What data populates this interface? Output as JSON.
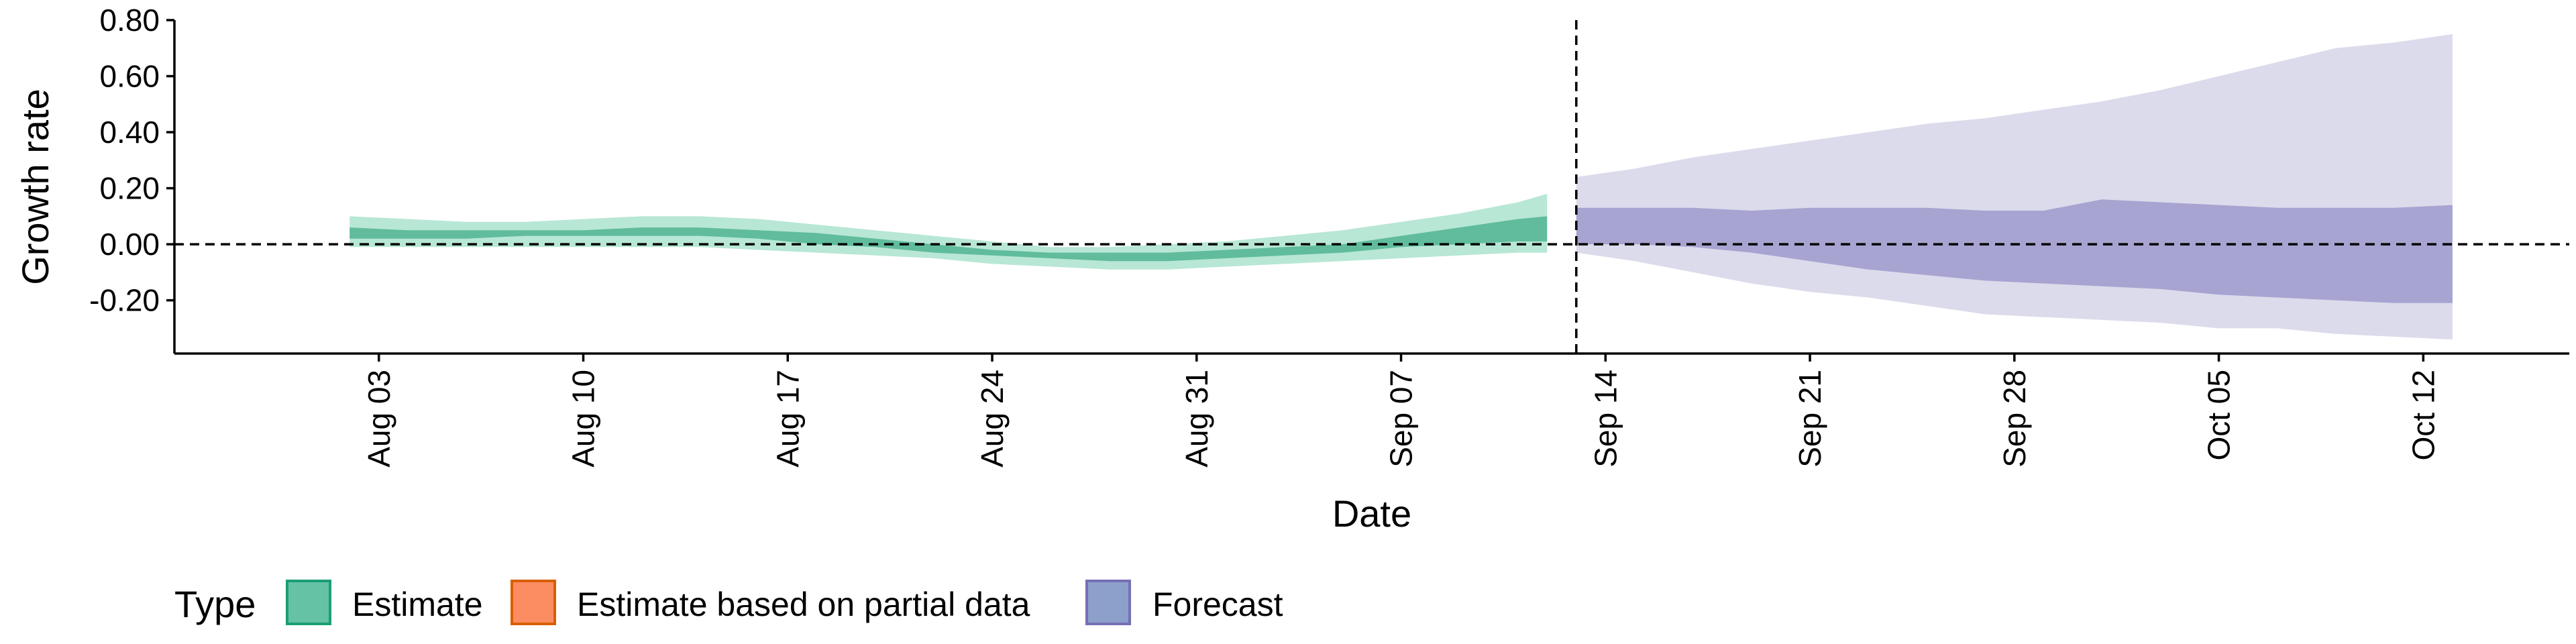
{
  "chart_data": {
    "type": "area",
    "xlabel": "Date",
    "ylabel": "Growth rate",
    "xlim": [
      "2020-07-27",
      "2020-10-17"
    ],
    "ylim": [
      -0.39,
      0.8
    ],
    "y_ticks": [
      -0.2,
      0,
      0.2,
      0.4,
      0.6,
      0.8
    ],
    "y_tick_labels": [
      "-0.20",
      "0.00",
      "0.20",
      "0.40",
      "0.60",
      "0.80"
    ],
    "x_ticks": [
      "2020-08-03",
      "2020-08-10",
      "2020-08-17",
      "2020-08-24",
      "2020-08-31",
      "2020-09-07",
      "2020-09-14",
      "2020-09-21",
      "2020-09-28",
      "2020-10-05",
      "2020-10-12"
    ],
    "x_tick_labels": [
      "Aug 03",
      "Aug 10",
      "Aug 17",
      "Aug 24",
      "Aug 31",
      "Sep 07",
      "Sep 14",
      "Sep 21",
      "Sep 28",
      "Oct 05",
      "Oct 12"
    ],
    "hline": 0,
    "vline": "2020-09-13",
    "legend": {
      "title": "Type",
      "position": "bottom-left",
      "entries": [
        {
          "label": "Estimate",
          "fill": "#66C2A5",
          "stroke": "#1B9E77"
        },
        {
          "label": "Estimate based on partial data",
          "fill": "#FC8D62",
          "stroke": "#D95F02"
        },
        {
          "label": "Forecast",
          "fill": "#8DA0CB",
          "stroke": "#7570B3"
        }
      ]
    },
    "series": [
      {
        "name": "Estimate",
        "color": "#1B9E77",
        "x": [
          "2020-08-02",
          "2020-08-04",
          "2020-08-06",
          "2020-08-08",
          "2020-08-10",
          "2020-08-12",
          "2020-08-14",
          "2020-08-16",
          "2020-08-18",
          "2020-08-20",
          "2020-08-22",
          "2020-08-24",
          "2020-08-26",
          "2020-08-28",
          "2020-08-30",
          "2020-09-01",
          "2020-09-03",
          "2020-09-05",
          "2020-09-07",
          "2020-09-09",
          "2020-09-11",
          "2020-09-12"
        ],
        "outer_lower": [
          -0.01,
          -0.01,
          -0.01,
          -0.01,
          -0.01,
          -0.01,
          -0.01,
          -0.02,
          -0.03,
          -0.04,
          -0.05,
          -0.07,
          -0.08,
          -0.09,
          -0.09,
          -0.08,
          -0.07,
          -0.06,
          -0.05,
          -0.04,
          -0.03,
          -0.03
        ],
        "inner_lower": [
          0.02,
          0.02,
          0.02,
          0.03,
          0.03,
          0.03,
          0.03,
          0.02,
          0.0,
          -0.01,
          -0.03,
          -0.04,
          -0.05,
          -0.06,
          -0.06,
          -0.05,
          -0.04,
          -0.03,
          -0.01,
          0.0,
          0.01,
          0.01
        ],
        "inner_upper": [
          0.06,
          0.05,
          0.05,
          0.05,
          0.05,
          0.06,
          0.06,
          0.05,
          0.04,
          0.02,
          0.0,
          -0.02,
          -0.03,
          -0.03,
          -0.03,
          -0.02,
          -0.01,
          0.0,
          0.03,
          0.06,
          0.09,
          0.1
        ],
        "outer_upper": [
          0.1,
          0.09,
          0.08,
          0.08,
          0.09,
          0.1,
          0.1,
          0.09,
          0.07,
          0.05,
          0.03,
          0.01,
          -0.01,
          -0.01,
          0.0,
          0.01,
          0.03,
          0.05,
          0.08,
          0.11,
          0.15,
          0.18
        ]
      },
      {
        "name": "Forecast",
        "color": "#7570B3",
        "x": [
          "2020-09-13",
          "2020-09-15",
          "2020-09-17",
          "2020-09-19",
          "2020-09-21",
          "2020-09-23",
          "2020-09-25",
          "2020-09-27",
          "2020-09-29",
          "2020-10-01",
          "2020-10-03",
          "2020-10-05",
          "2020-10-07",
          "2020-10-09",
          "2020-10-11",
          "2020-10-13"
        ],
        "outer_lower": [
          -0.03,
          -0.06,
          -0.1,
          -0.14,
          -0.17,
          -0.19,
          -0.22,
          -0.25,
          -0.26,
          -0.27,
          -0.28,
          -0.3,
          -0.3,
          -0.32,
          -0.33,
          -0.34
        ],
        "inner_lower": [
          0.0,
          0.0,
          -0.01,
          -0.03,
          -0.06,
          -0.09,
          -0.11,
          -0.13,
          -0.14,
          -0.15,
          -0.16,
          -0.18,
          -0.19,
          -0.2,
          -0.21,
          -0.21
        ],
        "inner_upper": [
          0.13,
          0.13,
          0.13,
          0.12,
          0.13,
          0.13,
          0.13,
          0.12,
          0.12,
          0.16,
          0.15,
          0.14,
          0.13,
          0.13,
          0.13,
          0.14
        ],
        "outer_upper": [
          0.24,
          0.27,
          0.31,
          0.34,
          0.37,
          0.4,
          0.43,
          0.45,
          0.48,
          0.51,
          0.55,
          0.6,
          0.65,
          0.7,
          0.72,
          0.75
        ]
      }
    ]
  }
}
